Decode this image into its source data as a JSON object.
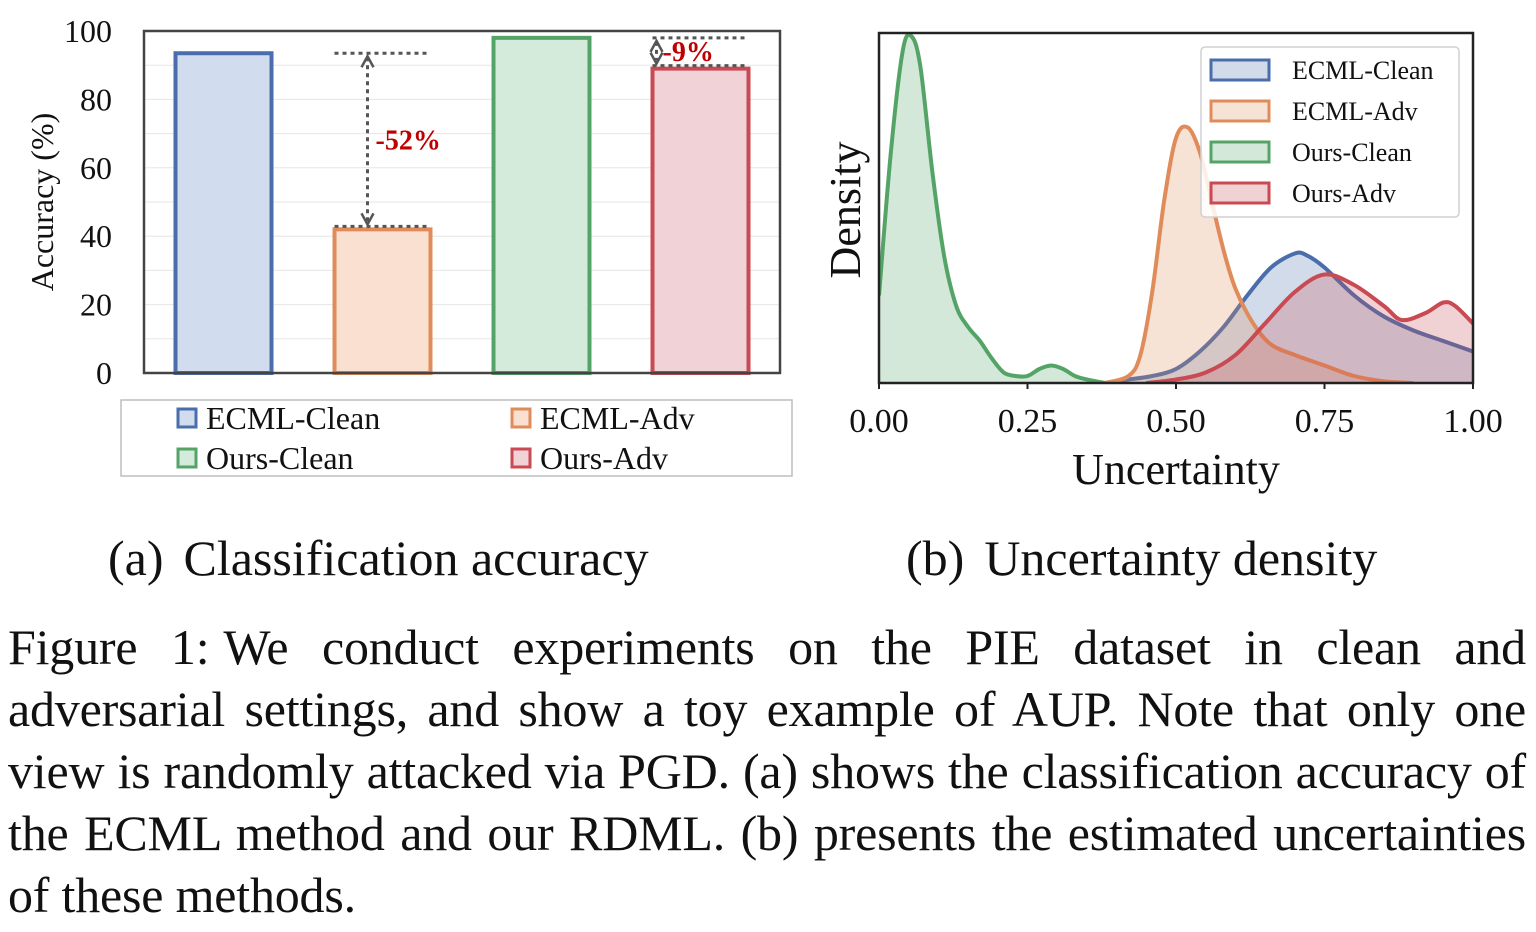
{
  "chart_data": [
    {
      "type": "bar",
      "title": "",
      "ylabel": "Accuracy (%)",
      "xlabel": "",
      "ylim": [
        0,
        100
      ],
      "yticks": [
        "0",
        "20",
        "40",
        "60",
        "80",
        "100"
      ],
      "categories": [
        "ECML-Clean",
        "ECML-Adv",
        "Ours-Clean",
        "Ours-Adv"
      ],
      "values": [
        93.5,
        42,
        98,
        89
      ],
      "colors": {
        "fill": [
          "#d2dcef",
          "#f9e0d0",
          "#d4eadb",
          "#f1d3d7"
        ],
        "stroke": [
          "#4a6eac",
          "#e08c5a",
          "#55a467",
          "#c94a52"
        ]
      },
      "grid": true,
      "legend": {
        "placement": "bottom",
        "entries": [
          "ECML-Clean",
          "ECML-Adv",
          "Ours-Clean",
          "Ours-Adv"
        ]
      },
      "annotations": [
        {
          "text": "-52%",
          "from_category": "ECML-Clean",
          "to_category": "ECML-Adv",
          "color": "#c00000"
        },
        {
          "text": "-9%",
          "from_category": "Ours-Clean",
          "to_category": "Ours-Adv",
          "color": "#c00000"
        }
      ]
    },
    {
      "type": "area",
      "title": "",
      "xlabel": "Uncertainty",
      "ylabel": "Density",
      "xlim": [
        0,
        1
      ],
      "ylim": [
        0,
        1
      ],
      "xticks": [
        "0.00",
        "0.25",
        "0.50",
        "0.75",
        "1.00"
      ],
      "grid": false,
      "legend": {
        "placement": "top-right"
      },
      "series": [
        {
          "name": "ECML-Clean",
          "stroke": "#4a6eac",
          "fill": "#4a6eac",
          "x": [
            0.38,
            0.42,
            0.46,
            0.5,
            0.54,
            0.58,
            0.62,
            0.66,
            0.7,
            0.72,
            0.75,
            0.8,
            0.85,
            0.9,
            0.95,
            1.0
          ],
          "y": [
            0.0,
            0.01,
            0.02,
            0.04,
            0.09,
            0.16,
            0.25,
            0.33,
            0.37,
            0.365,
            0.33,
            0.25,
            0.19,
            0.15,
            0.12,
            0.09
          ]
        },
        {
          "name": "ECML-Adv",
          "stroke": "#e08c5a",
          "fill": "#e08c5a",
          "x": [
            0.38,
            0.42,
            0.44,
            0.46,
            0.48,
            0.5,
            0.52,
            0.54,
            0.56,
            0.58,
            0.6,
            0.63,
            0.66,
            0.7,
            0.75,
            0.8,
            0.85,
            0.9
          ],
          "y": [
            0.0,
            0.02,
            0.08,
            0.26,
            0.52,
            0.7,
            0.73,
            0.66,
            0.52,
            0.38,
            0.27,
            0.17,
            0.11,
            0.08,
            0.05,
            0.02,
            0.005,
            0.0
          ]
        },
        {
          "name": "Ours-Clean",
          "stroke": "#55a467",
          "fill": "#55a467",
          "x": [
            0.0,
            0.02,
            0.04,
            0.055,
            0.07,
            0.09,
            0.11,
            0.13,
            0.15,
            0.17,
            0.19,
            0.21,
            0.23,
            0.25,
            0.27,
            0.29,
            0.31,
            0.33,
            0.35,
            0.38
          ],
          "y": [
            0.25,
            0.66,
            0.95,
            0.99,
            0.9,
            0.6,
            0.36,
            0.22,
            0.16,
            0.12,
            0.07,
            0.03,
            0.02,
            0.02,
            0.04,
            0.05,
            0.04,
            0.02,
            0.01,
            0.0
          ]
        },
        {
          "name": "Ours-Adv",
          "stroke": "#c94a52",
          "fill": "#c94a52",
          "x": [
            0.45,
            0.5,
            0.55,
            0.6,
            0.65,
            0.7,
            0.75,
            0.8,
            0.85,
            0.88,
            0.92,
            0.95,
            0.97,
            1.0
          ],
          "y": [
            0.0,
            0.01,
            0.03,
            0.08,
            0.17,
            0.26,
            0.31,
            0.28,
            0.22,
            0.18,
            0.2,
            0.23,
            0.22,
            0.17
          ]
        }
      ]
    }
  ],
  "captions": {
    "a_tag": "(a)",
    "a_text": "Classification accuracy",
    "b_tag": "(b)",
    "b_text": "Uncertainty density",
    "figure_label": "Figure 1:",
    "figure_text": "We conduct experiments on the PIE dataset in clean and adversarial settings, and show a toy example of AUP. Note that only one view is randomly attacked via PGD. (a) shows the classification accuracy of the ECML method and our RDML. (b) presents the estimated uncertainties of these methods."
  }
}
